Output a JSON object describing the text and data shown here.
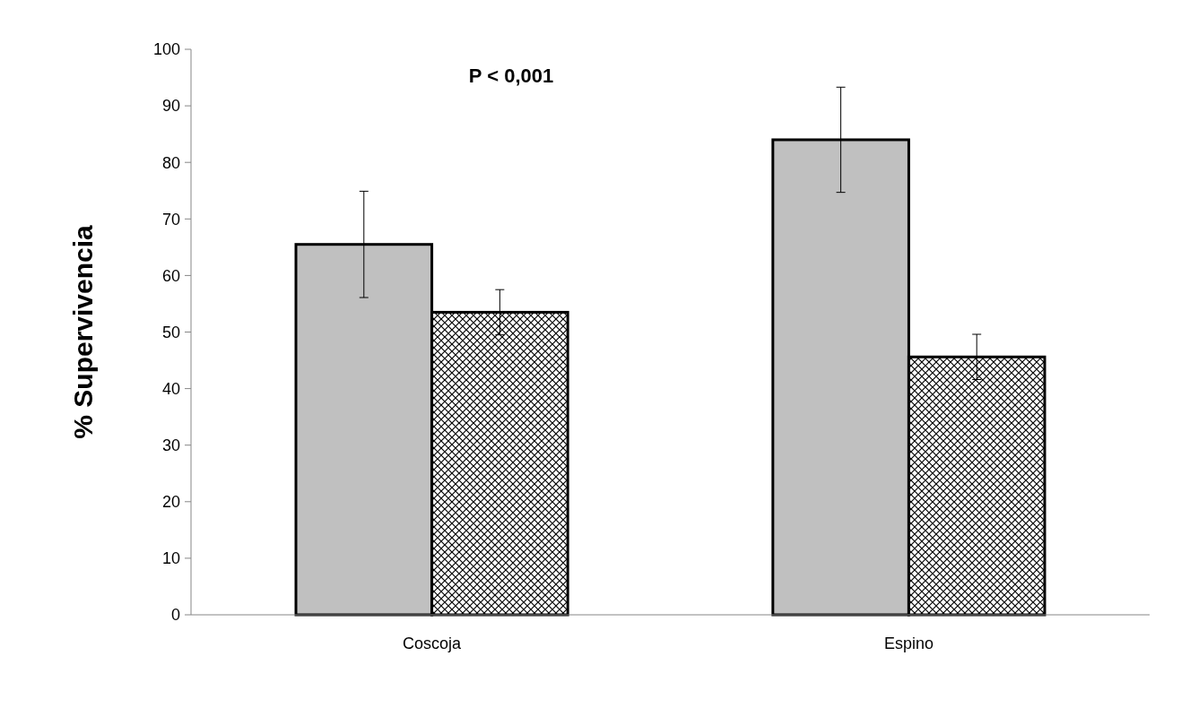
{
  "chart_data": {
    "type": "bar",
    "ylabel": "% Supervivencia",
    "categories": [
      "Coscoja",
      "Espino"
    ],
    "series": [
      {
        "color": "#c0c0c0",
        "values": [
          65.5,
          84.0
        ],
        "errors": [
          9.4,
          9.3
        ]
      },
      {
        "color": "#000000",
        "values": [
          53.5,
          45.6
        ],
        "errors": [
          4.0,
          4.0
        ]
      }
    ],
    "ylim": [
      0,
      100
    ],
    "yticks": [
      0,
      10,
      20,
      30,
      40,
      50,
      60,
      70,
      80,
      90,
      100
    ],
    "annotations": [
      "P < 0,001"
    ]
  }
}
